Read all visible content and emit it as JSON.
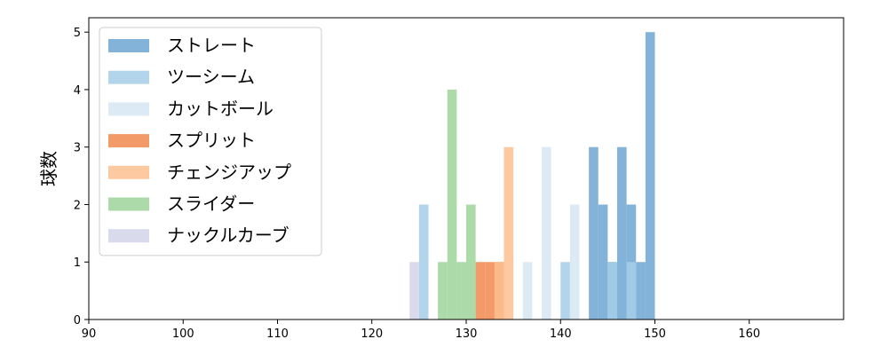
{
  "chart_data": {
    "type": "bar",
    "title": "",
    "xlabel": "",
    "ylabel": "球数",
    "xlim": [
      90,
      170
    ],
    "ylim": [
      0,
      5.25
    ],
    "xticks": [
      90,
      100,
      110,
      120,
      130,
      140,
      150,
      160
    ],
    "yticks": [
      0,
      1,
      2,
      3,
      4,
      5
    ],
    "grid": false,
    "legend_position": "top-left",
    "bin_width": 1,
    "series": [
      {
        "name": "ストレート",
        "color": "#6ea6d2",
        "bins": [
          {
            "x": 143,
            "count": 3
          },
          {
            "x": 144,
            "count": 2
          },
          {
            "x": 145,
            "count": 1
          },
          {
            "x": 146,
            "count": 3
          },
          {
            "x": 147,
            "count": 2
          },
          {
            "x": 148,
            "count": 1
          },
          {
            "x": 149,
            "count": 5
          }
        ]
      },
      {
        "name": "ツーシーム",
        "color": "#a6cee8",
        "bins": [
          {
            "x": 125,
            "count": 2
          },
          {
            "x": 140,
            "count": 1
          },
          {
            "x": 145,
            "count": 1
          },
          {
            "x": 147,
            "count": 1
          }
        ]
      },
      {
        "name": "カットボール",
        "color": "#d6e6f5",
        "bins": [
          {
            "x": 136,
            "count": 1
          },
          {
            "x": 138,
            "count": 3
          },
          {
            "x": 141,
            "count": 2
          }
        ]
      },
      {
        "name": "スプリット",
        "color": "#f0884e",
        "bins": [
          {
            "x": 131,
            "count": 1
          },
          {
            "x": 132,
            "count": 1
          },
          {
            "x": 133,
            "count": 1
          }
        ]
      },
      {
        "name": "チェンジアップ",
        "color": "#fdbf8f",
        "bins": [
          {
            "x": 133,
            "count": 1
          },
          {
            "x": 134,
            "count": 3
          }
        ]
      },
      {
        "name": "スライダー",
        "color": "#9ed39a",
        "bins": [
          {
            "x": 127,
            "count": 1
          },
          {
            "x": 128,
            "count": 4
          },
          {
            "x": 129,
            "count": 1
          },
          {
            "x": 130,
            "count": 2
          }
        ]
      },
      {
        "name": "ナックルカーブ",
        "color": "#d3d3ea",
        "bins": [
          {
            "x": 124,
            "count": 1
          }
        ]
      }
    ]
  }
}
